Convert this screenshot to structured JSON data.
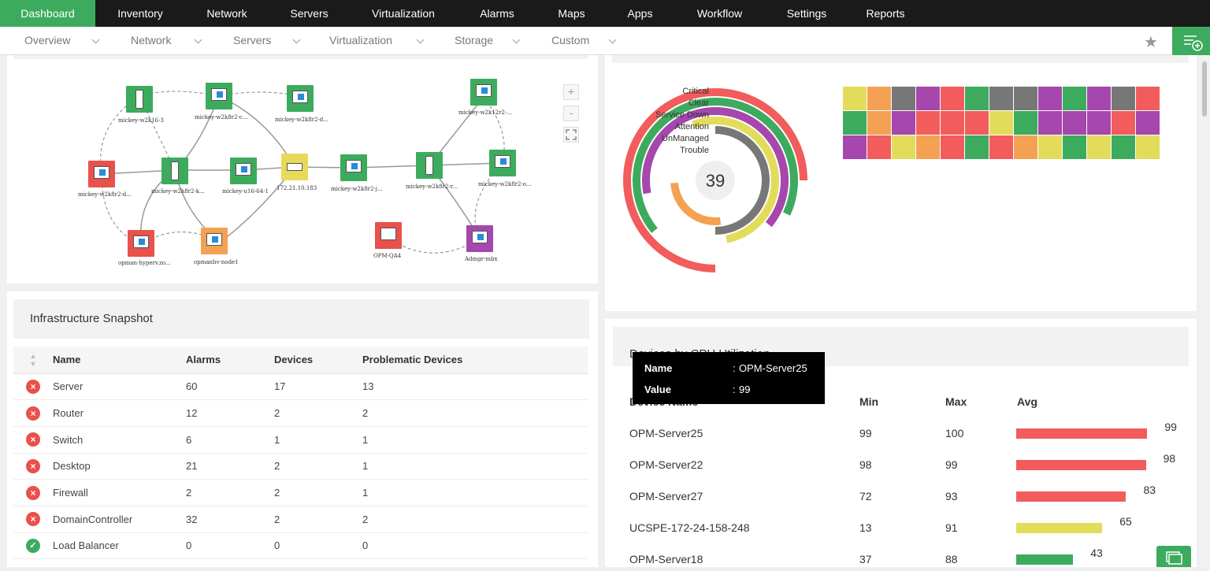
{
  "topnav": [
    "Dashboard",
    "Inventory",
    "Network",
    "Servers",
    "Virtualization",
    "Alarms",
    "Maps",
    "Apps",
    "Workflow",
    "Settings",
    "Reports"
  ],
  "subnav": [
    "Overview",
    "Network",
    "Servers",
    "Virtualization",
    "Storage",
    "Custom"
  ],
  "map": {
    "nodes": [
      {
        "label": "mickey-w2k16-3",
        "color": "#3dab5d",
        "type": "tower"
      },
      {
        "label": "mickey-w2k8r2-c...",
        "color": "#3dab5d",
        "type": "win"
      },
      {
        "label": "mickey-w2k8r2-d...",
        "color": "#3dab5d",
        "type": "win"
      },
      {
        "label": "mickey-w2k8r2-d...",
        "color": "#e8514c",
        "type": "win"
      },
      {
        "label": "mickey-w2k8r2-k...",
        "color": "#3dab5d",
        "type": "tower"
      },
      {
        "label": "mickey-u16-64-1",
        "color": "#3dab5d",
        "type": "win"
      },
      {
        "label": "172.21.10.183",
        "color": "#e8d95a",
        "type": "switch"
      },
      {
        "label": "mickey-w2k8r2-j...",
        "color": "#3dab5d",
        "type": "win"
      },
      {
        "label": "mickey-w2k8r2-r...",
        "color": "#3dab5d",
        "type": "tower"
      },
      {
        "label": "mickey-w2k12r2-...",
        "color": "#3dab5d",
        "type": "win"
      },
      {
        "label": "mickey-w2k8r2-o...",
        "color": "#3dab5d",
        "type": "win"
      },
      {
        "label": "opman-hyperv.zo...",
        "color": "#e8514c",
        "type": "win"
      },
      {
        "label": "opmanhv-node1",
        "color": "#f4a153",
        "type": "win"
      },
      {
        "label": "OPM-QA4",
        "color": "#e8514c",
        "type": "desk"
      },
      {
        "label": "Admgr-mbx",
        "color": "#a547ad",
        "type": "win"
      }
    ],
    "zoom_in": "+",
    "zoom_out": "-"
  },
  "status": {
    "total": "39",
    "legend": [
      "Critical",
      "Clear",
      "Service Down",
      "Attention",
      "UnManaged",
      "Trouble"
    ],
    "colors": [
      "#f25c5c",
      "#3dab5d",
      "#a547ad",
      "#e3dc5a",
      "#777777",
      "#f4a153"
    ],
    "heatmap": [
      [
        "#e3dc5a",
        "#f4a153",
        "#777777",
        "#a547ad",
        "#f25c5c",
        "#3dab5d",
        "#777777",
        "#777777",
        "#a547ad",
        "#3dab5d",
        "#a547ad",
        "#777777",
        "#f25c5c"
      ],
      [
        "#3dab5d",
        "#f4a153",
        "#a547ad",
        "#f25c5c",
        "#f25c5c",
        "#f25c5c",
        "#e3dc5a",
        "#3dab5d",
        "#a547ad",
        "#a547ad",
        "#a547ad",
        "#f25c5c",
        "#a547ad"
      ],
      [
        "#a547ad",
        "#f25c5c",
        "#e3dc5a",
        "#f4a153",
        "#f25c5c",
        "#3dab5d",
        "#f25c5c",
        "#f4a153",
        "#e3dc5a",
        "#3dab5d",
        "#e3dc5a",
        "#3dab5d",
        "#e3dc5a"
      ]
    ]
  },
  "snapshot": {
    "title": "Infrastructure Snapshot",
    "headers": [
      "Name",
      "Alarms",
      "Devices",
      "Problematic Devices"
    ],
    "rows": [
      {
        "status": "critical",
        "name": "Server",
        "alarms": "60",
        "devices": "17",
        "problematic": "13"
      },
      {
        "status": "critical",
        "name": "Router",
        "alarms": "12",
        "devices": "2",
        "problematic": "2"
      },
      {
        "status": "critical",
        "name": "Switch",
        "alarms": "6",
        "devices": "1",
        "problematic": "1"
      },
      {
        "status": "critical",
        "name": "Desktop",
        "alarms": "21",
        "devices": "2",
        "problematic": "1"
      },
      {
        "status": "critical",
        "name": "Firewall",
        "alarms": "2",
        "devices": "2",
        "problematic": "1"
      },
      {
        "status": "critical",
        "name": "DomainController",
        "alarms": "32",
        "devices": "2",
        "problematic": "2"
      },
      {
        "status": "clear",
        "name": "Load Balancer",
        "alarms": "0",
        "devices": "0",
        "problematic": "0"
      }
    ]
  },
  "cpu": {
    "title": "Devices by CPU Utilization",
    "headers": [
      "Device Name",
      "Min",
      "Max",
      "Avg"
    ],
    "rows": [
      {
        "name": "OPM-Server25",
        "min": "99",
        "max": "100",
        "avg": "99",
        "color": "#f25c5c"
      },
      {
        "name": "OPM-Server22",
        "min": "98",
        "max": "99",
        "avg": "98",
        "color": "#f25c5c"
      },
      {
        "name": "OPM-Server27",
        "min": "72",
        "max": "93",
        "avg": "83",
        "color": "#f25c5c"
      },
      {
        "name": "UCSPE-172-24-158-248",
        "min": "13",
        "max": "91",
        "avg": "65",
        "color": "#e3dc5a"
      },
      {
        "name": "OPM-Server18",
        "min": "37",
        "max": "88",
        "avg": "43",
        "color": "#3dab5d"
      }
    ],
    "tooltip": {
      "name_label": "Name",
      "name_value": "OPM-Server25",
      "value_label": "Value",
      "value_value": "99",
      "sep": ":"
    }
  }
}
